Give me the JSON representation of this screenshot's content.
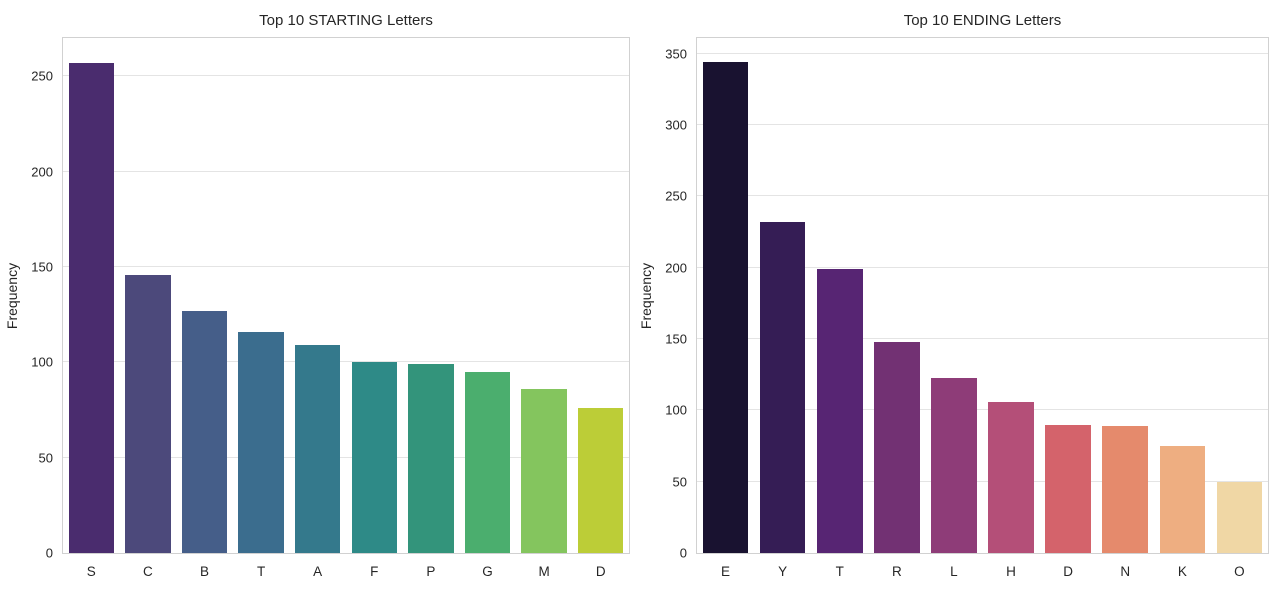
{
  "figure": {
    "background": "#ffffff",
    "text_color": "#262626",
    "grid_color": "#e4e4e4",
    "spine_color": "#d1d1d1"
  },
  "chart_data": [
    {
      "type": "bar",
      "title": "Top 10 STARTING Letters",
      "xlabel": "",
      "ylabel": "Frequency",
      "categories": [
        "S",
        "C",
        "B",
        "T",
        "A",
        "F",
        "P",
        "G",
        "M",
        "D"
      ],
      "values": [
        257,
        146,
        127,
        116,
        109,
        100,
        99,
        95,
        86,
        76
      ],
      "colors": [
        "#4a2c6e",
        "#4c497b",
        "#455e89",
        "#3b6d8e",
        "#34798c",
        "#2e8a87",
        "#33947b",
        "#4bae6e",
        "#84c55e",
        "#bccd37"
      ],
      "palette": "viridis-desaturated",
      "ylim": [
        0,
        270
      ],
      "yticks": [
        0,
        50,
        100,
        150,
        200,
        250
      ],
      "grid": "horizontal",
      "legend": "none"
    },
    {
      "type": "bar",
      "title": "Top 10 ENDING Letters",
      "xlabel": "",
      "ylabel": "Frequency",
      "categories": [
        "E",
        "Y",
        "T",
        "R",
        "L",
        "H",
        "D",
        "N",
        "K",
        "O"
      ],
      "values": [
        344,
        232,
        199,
        148,
        123,
        106,
        90,
        89,
        75,
        50
      ],
      "colors": [
        "#191230",
        "#351d55",
        "#572573",
        "#723173",
        "#8e3c78",
        "#b44f78",
        "#d4636b",
        "#e58a6c",
        "#eeae81",
        "#f0d7a5"
      ],
      "palette": "magma-desaturated",
      "ylim": [
        0,
        361
      ],
      "yticks": [
        0,
        50,
        100,
        150,
        200,
        250,
        300,
        350
      ],
      "grid": "horizontal",
      "legend": "none"
    }
  ]
}
